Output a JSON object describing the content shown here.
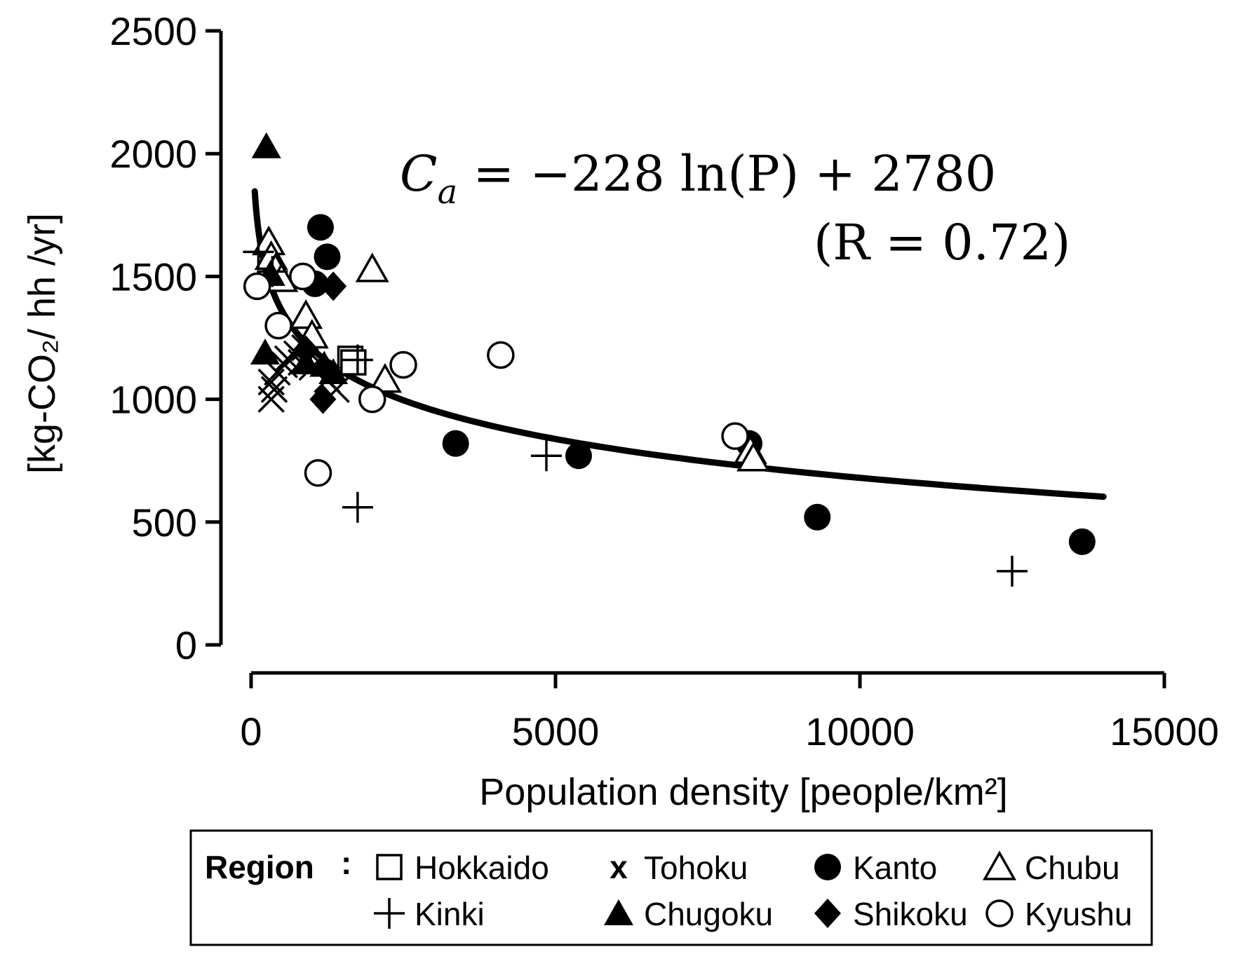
{
  "chart_data": {
    "type": "scatter",
    "xlabel": "Population density [people/km²]",
    "ylabel": "[kg-CO₂/ hh /yr]",
    "xlim": [
      0,
      15000
    ],
    "ylim": [
      0,
      2500
    ],
    "x_ticks": [
      "0",
      "5000",
      "10000",
      "15000"
    ],
    "y_ticks": [
      "0",
      "500",
      "1000",
      "1500",
      "2000",
      "2500"
    ],
    "equation": "C_a = −228 ln(P) + 2780",
    "equation_parts": {
      "lhs": "C",
      "lhs_sub": "a",
      "rhs": " = −228 ln(P) + 2780"
    },
    "fit_r_label": "(R = 0.72)",
    "fit": {
      "a": -228,
      "b": 2780,
      "x_from": 60,
      "x_to": 14000
    },
    "legend": {
      "title": "Region",
      "entries": [
        {
          "name": "Hokkaido",
          "marker": "square-open"
        },
        {
          "name": "Tohoku",
          "marker": "x"
        },
        {
          "name": "Kanto",
          "marker": "circle-filled"
        },
        {
          "name": "Chubu",
          "marker": "triangle-open"
        },
        {
          "name": "Kinki",
          "marker": "plus"
        },
        {
          "name": "Chugoku",
          "marker": "triangle-filled"
        },
        {
          "name": "Shikoku",
          "marker": "diamond-filled"
        },
        {
          "name": "Kyushu",
          "marker": "circle-open"
        }
      ]
    },
    "series": [
      {
        "name": "Hokkaido",
        "marker": "square-open",
        "points": [
          [
            1630,
            1165
          ],
          [
            1680,
            1150
          ]
        ]
      },
      {
        "name": "Tohoku",
        "marker": "x",
        "points": [
          [
            330,
            1000
          ],
          [
            330,
            1070
          ],
          [
            380,
            1040
          ],
          [
            430,
            1110
          ],
          [
            550,
            1140
          ],
          [
            600,
            1165
          ],
          [
            750,
            1185
          ],
          [
            820,
            1150
          ],
          [
            880,
            1210
          ],
          [
            1000,
            1130
          ],
          [
            1250,
            1080
          ],
          [
            1400,
            1040
          ]
        ]
      },
      {
        "name": "Kanto",
        "marker": "circle-filled",
        "points": [
          [
            1140,
            1700
          ],
          [
            1250,
            1580
          ],
          [
            1050,
            1470
          ],
          [
            3360,
            820
          ],
          [
            5380,
            770
          ],
          [
            8180,
            820
          ],
          [
            9300,
            520
          ],
          [
            13650,
            420
          ]
        ]
      },
      {
        "name": "Chubu",
        "marker": "triangle-open",
        "points": [
          [
            290,
            1640
          ],
          [
            330,
            1580
          ],
          [
            400,
            1530
          ],
          [
            500,
            1490
          ],
          [
            900,
            1340
          ],
          [
            1000,
            1260
          ],
          [
            1990,
            1530
          ],
          [
            2200,
            1080
          ],
          [
            8200,
            790
          ],
          [
            8250,
            760
          ]
        ]
      },
      {
        "name": "Kinki",
        "marker": "plus",
        "points": [
          [
            120,
            1600
          ],
          [
            350,
            1520
          ],
          [
            1750,
            1160
          ],
          [
            1750,
            560
          ],
          [
            4850,
            770
          ],
          [
            12500,
            300
          ]
        ]
      },
      {
        "name": "Chugoku",
        "marker": "triangle-filled",
        "points": [
          [
            250,
            2030
          ],
          [
            230,
            1190
          ],
          [
            320,
            1510
          ],
          [
            900,
            1150
          ],
          [
            1200,
            1140
          ],
          [
            1350,
            1110
          ]
        ]
      },
      {
        "name": "Shikoku",
        "marker": "diamond-filled",
        "points": [
          [
            1180,
            1000
          ],
          [
            1350,
            1460
          ],
          [
            900,
            1200
          ]
        ]
      },
      {
        "name": "Kyushu",
        "marker": "circle-open",
        "points": [
          [
            100,
            1460
          ],
          [
            450,
            1300
          ],
          [
            850,
            1500
          ],
          [
            1100,
            700
          ],
          [
            1990,
            1000
          ],
          [
            2500,
            1140
          ],
          [
            4100,
            1180
          ],
          [
            7950,
            850
          ]
        ]
      }
    ]
  }
}
